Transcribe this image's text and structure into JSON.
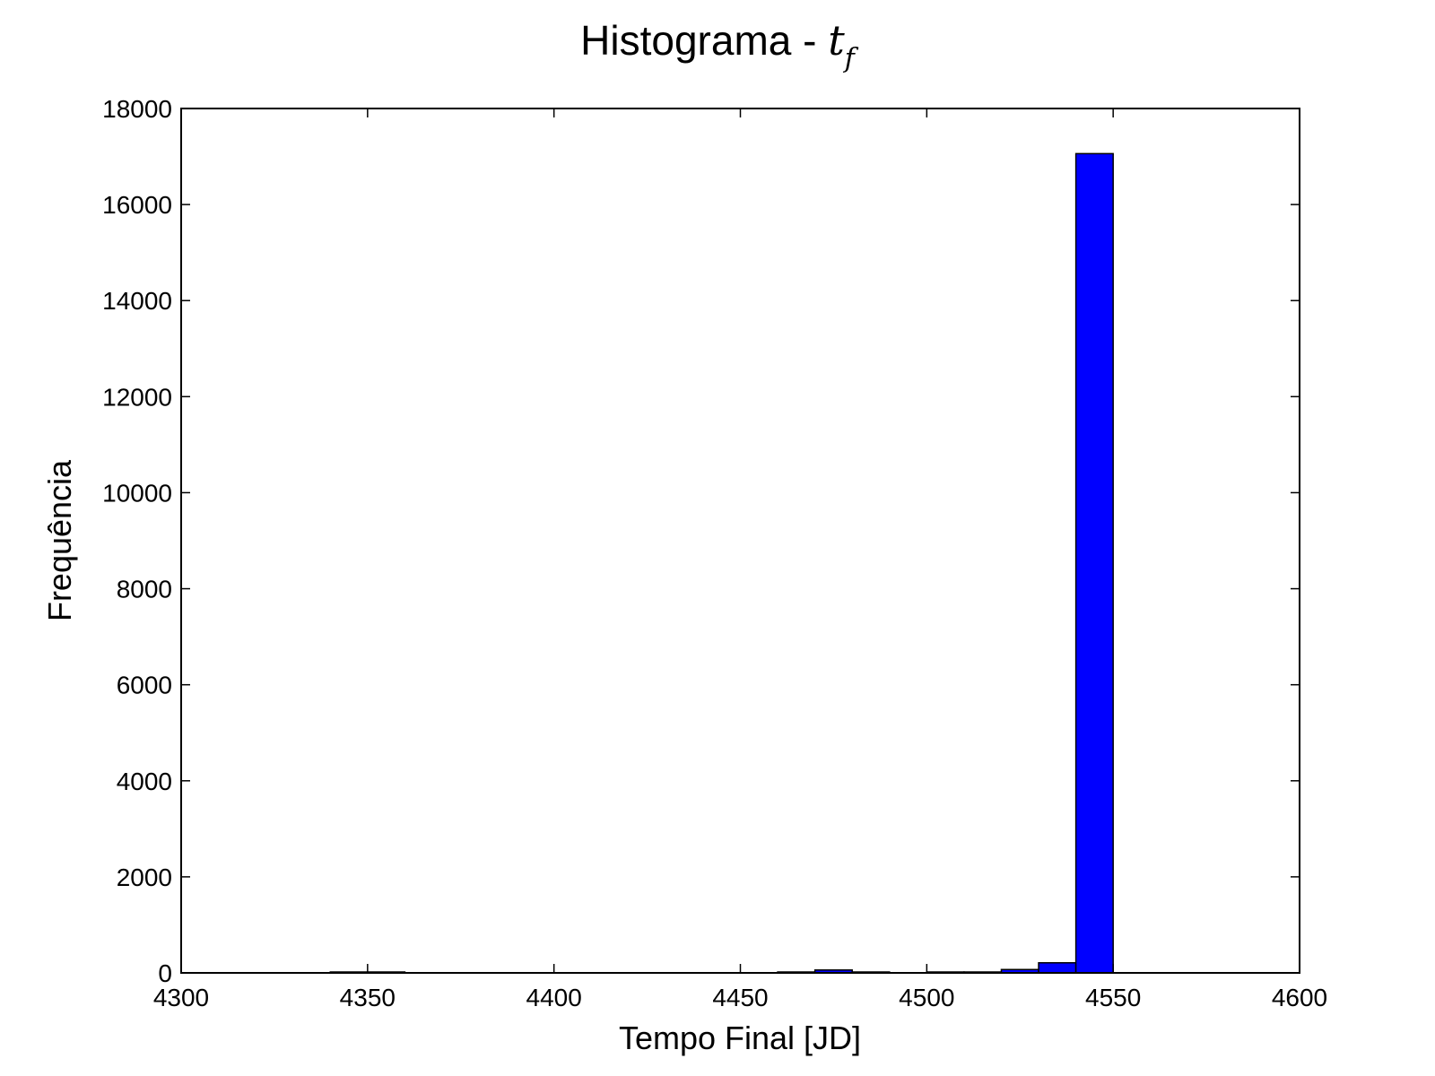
{
  "chart_data": {
    "type": "bar",
    "title": "Histograma - ",
    "title_math_base": "t",
    "title_math_sub": "f",
    "xlabel": "Tempo Final [JD]",
    "ylabel": "Frequência",
    "xlim": [
      4300,
      4600
    ],
    "ylim": [
      0,
      18000
    ],
    "xticks": [
      "4300",
      "4350",
      "4400",
      "4450",
      "4500",
      "4550",
      "4600"
    ],
    "yticks": [
      "0",
      "2000",
      "4000",
      "6000",
      "8000",
      "10000",
      "12000",
      "14000",
      "16000",
      "18000"
    ],
    "bar_color": "#0000ff",
    "grid": false,
    "bins": [
      {
        "x0": 4340,
        "x1": 4350,
        "value": 5
      },
      {
        "x0": 4350,
        "x1": 4360,
        "value": 10
      },
      {
        "x0": 4460,
        "x1": 4470,
        "value": 5
      },
      {
        "x0": 4470,
        "x1": 4480,
        "value": 60
      },
      {
        "x0": 4480,
        "x1": 4490,
        "value": 15
      },
      {
        "x0": 4500,
        "x1": 4510,
        "value": 10
      },
      {
        "x0": 4510,
        "x1": 4520,
        "value": 15
      },
      {
        "x0": 4520,
        "x1": 4530,
        "value": 70
      },
      {
        "x0": 4530,
        "x1": 4540,
        "value": 210
      },
      {
        "x0": 4540,
        "x1": 4550,
        "value": 17060
      }
    ]
  }
}
